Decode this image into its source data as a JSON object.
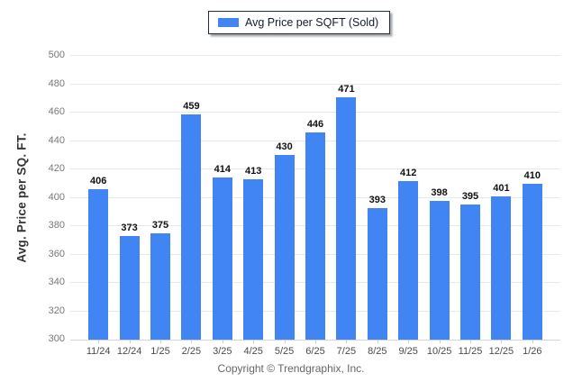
{
  "chart_data": {
    "type": "bar",
    "title": "",
    "legend": "Avg Price per SQFT (Sold)",
    "ylabel": "Avg. Price per SQ. FT.",
    "categories": [
      "11/24",
      "12/24",
      "1/25",
      "2/25",
      "3/25",
      "4/25",
      "5/25",
      "6/25",
      "7/25",
      "8/25",
      "9/25",
      "10/25",
      "11/25",
      "12/25",
      "1/26"
    ],
    "values": [
      406,
      373,
      375,
      459,
      414,
      413,
      430,
      446,
      471,
      393,
      412,
      398,
      395,
      401,
      410
    ],
    "ylim": [
      300,
      500
    ],
    "yticks": [
      300,
      320,
      340,
      360,
      380,
      400,
      420,
      440,
      460,
      480,
      500
    ],
    "grid": true,
    "legend_position": "top-center",
    "bar_color": "#4184f3",
    "colors": {
      "grid": "#e8e8e8",
      "axis_line": "#d5d5d5",
      "tick_mark": "#cccccc",
      "value_label": "#111111",
      "x_label": "#4a4a4a",
      "y_tick_label": "#777777",
      "axis_title": "#333333",
      "legend_border": "#1f2b3e",
      "legend_text": "#121c2b",
      "copyright": "#666666",
      "background": "#ffffff"
    }
  },
  "footer": {
    "copyright": "Copyright © Trendgraphix, Inc."
  }
}
